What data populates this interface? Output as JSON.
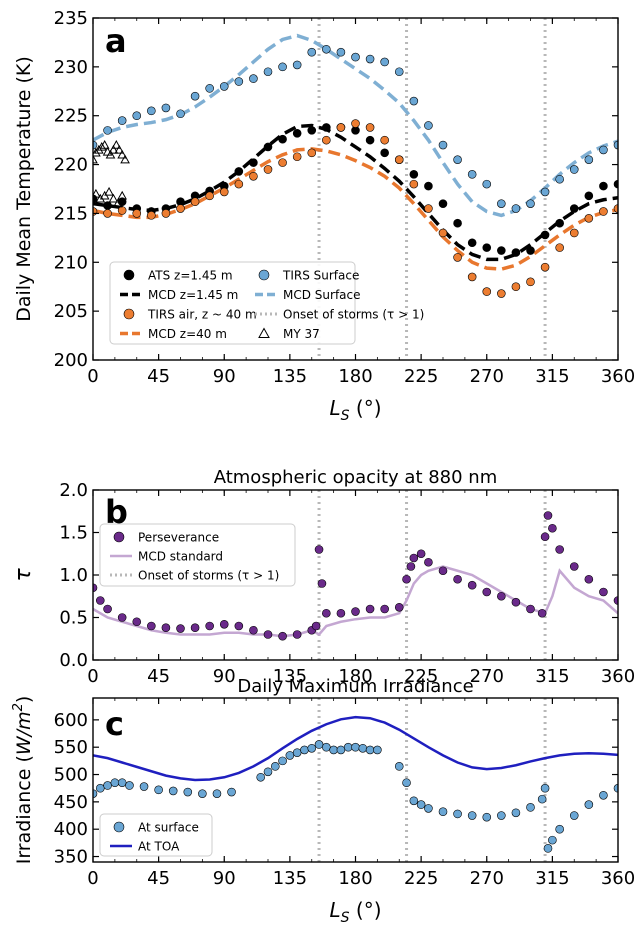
{
  "chart_data": [
    {
      "panel": "a",
      "type": "scatter",
      "title": "",
      "xlabel": "L_S (°)",
      "ylabel": "Daily Mean Temperature (K)",
      "xlim": [
        0,
        360
      ],
      "ylim": [
        200,
        235
      ],
      "xticks": [
        0,
        45,
        90,
        135,
        180,
        225,
        270,
        315,
        360
      ],
      "yticks": [
        200,
        205,
        210,
        215,
        220,
        225,
        230,
        235
      ],
      "storm_onsets": [
        155,
        215,
        310
      ],
      "legend_position": "lower-left",
      "series": [
        {
          "name": "ATS z=1.45 m",
          "kind": "scatter",
          "marker": "circle",
          "color": "#000000",
          "x": [
            0,
            10,
            20,
            30,
            40,
            50,
            60,
            70,
            80,
            90,
            100,
            110,
            120,
            130,
            140,
            150,
            160,
            170,
            180,
            190,
            200,
            210,
            220,
            230,
            240,
            250,
            260,
            270,
            280,
            290,
            300,
            310,
            320,
            330,
            340,
            350,
            360
          ],
          "y": [
            216.5,
            215.8,
            216.2,
            215.5,
            215.2,
            215.5,
            216.2,
            216.8,
            217.3,
            217.8,
            219.3,
            220.2,
            221.8,
            222.6,
            223.2,
            223.5,
            223.8,
            223.8,
            223.5,
            222.5,
            221.2,
            220.5,
            219.0,
            217.8,
            216.0,
            214.0,
            212.0,
            211.5,
            211.2,
            211.0,
            211.2,
            212.8,
            214.0,
            215.5,
            216.8,
            217.8,
            218.0
          ]
        },
        {
          "name": "MCD z=1.45 m",
          "kind": "line",
          "dash": "dashed",
          "color": "#000000",
          "x": [
            0,
            10,
            20,
            30,
            40,
            50,
            60,
            70,
            80,
            90,
            100,
            110,
            120,
            130,
            140,
            150,
            160,
            170,
            180,
            190,
            200,
            210,
            220,
            230,
            240,
            250,
            260,
            270,
            280,
            290,
            300,
            310,
            320,
            330,
            340,
            350,
            360
          ],
          "y": [
            216.0,
            215.8,
            215.6,
            215.4,
            215.3,
            215.5,
            215.9,
            216.5,
            217.3,
            218.2,
            219.3,
            220.6,
            221.9,
            223.1,
            223.9,
            224.0,
            223.6,
            222.8,
            221.8,
            220.8,
            219.6,
            218.3,
            216.7,
            215.0,
            213.3,
            211.8,
            210.8,
            210.3,
            210.3,
            210.8,
            211.8,
            213.0,
            214.2,
            215.2,
            216.0,
            216.4,
            216.6
          ]
        },
        {
          "name": "TIRS air, z ~ 40 m",
          "kind": "scatter",
          "marker": "circle",
          "color": "#ec7d31",
          "x": [
            0,
            10,
            20,
            30,
            40,
            50,
            60,
            70,
            80,
            90,
            100,
            110,
            120,
            130,
            140,
            150,
            160,
            170,
            180,
            190,
            200,
            210,
            220,
            230,
            240,
            250,
            260,
            270,
            280,
            290,
            300,
            310,
            320,
            330,
            340,
            350,
            360
          ],
          "y": [
            215.2,
            215.0,
            215.3,
            215.0,
            214.8,
            215.0,
            215.5,
            216.2,
            216.8,
            217.2,
            218.0,
            218.8,
            219.5,
            220.2,
            220.8,
            221.2,
            222.5,
            223.8,
            224.2,
            223.8,
            222.5,
            220.5,
            218.0,
            215.5,
            213.0,
            210.5,
            208.5,
            207.0,
            206.8,
            207.5,
            208.0,
            209.5,
            211.5,
            213.0,
            214.5,
            215.2,
            215.5
          ]
        },
        {
          "name": "MCD z=40 m",
          "kind": "line",
          "dash": "dashed",
          "color": "#e8772e",
          "x": [
            0,
            10,
            20,
            30,
            40,
            50,
            60,
            70,
            80,
            90,
            100,
            110,
            120,
            130,
            140,
            150,
            160,
            170,
            180,
            190,
            200,
            210,
            220,
            230,
            240,
            250,
            260,
            270,
            280,
            290,
            300,
            310,
            320,
            330,
            340,
            350,
            360
          ],
          "y": [
            215.3,
            215.0,
            214.8,
            214.6,
            214.6,
            214.9,
            215.4,
            216.0,
            216.8,
            217.6,
            218.5,
            219.4,
            220.3,
            221.0,
            221.5,
            221.6,
            221.4,
            221.0,
            220.4,
            219.7,
            218.8,
            217.6,
            216.0,
            214.3,
            212.6,
            211.2,
            210.0,
            209.4,
            209.3,
            209.7,
            210.6,
            211.7,
            212.8,
            213.8,
            214.6,
            215.1,
            215.4
          ]
        },
        {
          "name": "TIRS Surface",
          "kind": "scatter",
          "marker": "circle",
          "color": "#6aa6d4",
          "x": [
            0,
            10,
            20,
            30,
            40,
            50,
            60,
            70,
            80,
            90,
            100,
            110,
            120,
            130,
            140,
            150,
            160,
            170,
            180,
            190,
            200,
            210,
            220,
            230,
            240,
            250,
            260,
            270,
            280,
            290,
            300,
            310,
            320,
            330,
            340,
            350,
            360
          ],
          "y": [
            222.0,
            223.5,
            224.5,
            225.0,
            225.5,
            225.8,
            225.2,
            227.0,
            227.8,
            228.0,
            228.5,
            228.8,
            229.5,
            230.0,
            230.2,
            231.5,
            231.8,
            231.5,
            231.0,
            230.8,
            230.5,
            229.5,
            226.5,
            224.0,
            222.0,
            220.5,
            219.0,
            218.0,
            216.0,
            215.5,
            216.0,
            217.2,
            218.5,
            219.5,
            220.5,
            221.5,
            222.0
          ]
        },
        {
          "name": "MCD Surface",
          "kind": "line",
          "dash": "dashed",
          "color": "#7fafd3",
          "x": [
            0,
            10,
            20,
            30,
            40,
            50,
            60,
            70,
            80,
            90,
            100,
            110,
            120,
            130,
            140,
            150,
            160,
            170,
            180,
            190,
            200,
            210,
            220,
            230,
            240,
            250,
            260,
            270,
            280,
            290,
            300,
            310,
            320,
            330,
            340,
            350,
            360
          ],
          "y": [
            222.5,
            223.3,
            223.8,
            224.1,
            224.3,
            224.6,
            225.1,
            225.9,
            226.9,
            228.0,
            229.2,
            230.5,
            231.8,
            232.8,
            233.2,
            232.7,
            231.8,
            230.8,
            229.8,
            228.8,
            227.6,
            226.3,
            224.5,
            222.5,
            220.2,
            218.0,
            216.2,
            215.2,
            214.8,
            215.3,
            216.3,
            217.6,
            219.0,
            220.2,
            221.2,
            221.9,
            222.4
          ]
        },
        {
          "name": "Onset of storms (τ > 1)",
          "kind": "legend-only",
          "color": "#b8b8b8"
        },
        {
          "name": "MY 37",
          "kind": "scatter",
          "marker": "triangle",
          "color": "#000000",
          "x": [
            0,
            2,
            4,
            6,
            8,
            10,
            12,
            14,
            16,
            18,
            20,
            22,
            2,
            5,
            8,
            11,
            14,
            17,
            20
          ],
          "y": [
            220.5,
            221.2,
            221.5,
            221.8,
            222.0,
            221.3,
            221.0,
            221.5,
            222.0,
            221.5,
            221.0,
            220.5,
            217.0,
            216.5,
            216.8,
            217.2,
            216.5,
            216.0,
            216.8
          ]
        }
      ]
    },
    {
      "panel": "b",
      "type": "scatter",
      "title": "Atmospheric opacity at 880 nm",
      "xlabel": "",
      "ylabel": "τ",
      "xlim": [
        0,
        360
      ],
      "ylim": [
        0.0,
        2.0
      ],
      "xticks": [
        0,
        45,
        90,
        135,
        180,
        225,
        270,
        315,
        360
      ],
      "yticks": [
        0.0,
        0.5,
        1.0,
        1.5,
        2.0
      ],
      "storm_onsets": [
        155,
        215,
        310
      ],
      "legend_position": "upper-left",
      "series": [
        {
          "name": "Perseverance",
          "kind": "scatter",
          "marker": "circle",
          "color": "#6a2a8a",
          "x": [
            0,
            5,
            10,
            20,
            30,
            40,
            50,
            60,
            70,
            80,
            90,
            100,
            110,
            120,
            130,
            140,
            150,
            153,
            155,
            157,
            160,
            170,
            180,
            190,
            200,
            210,
            215,
            218,
            220,
            225,
            230,
            240,
            250,
            260,
            270,
            280,
            290,
            300,
            308,
            310,
            312,
            315,
            320,
            330,
            340,
            350,
            360
          ],
          "y": [
            0.85,
            0.7,
            0.6,
            0.5,
            0.45,
            0.4,
            0.38,
            0.37,
            0.38,
            0.4,
            0.42,
            0.4,
            0.35,
            0.3,
            0.28,
            0.3,
            0.35,
            0.4,
            1.3,
            0.9,
            0.55,
            0.55,
            0.57,
            0.6,
            0.6,
            0.62,
            0.95,
            1.1,
            1.2,
            1.25,
            1.15,
            1.05,
            0.95,
            0.88,
            0.8,
            0.75,
            0.68,
            0.6,
            0.55,
            1.45,
            1.7,
            1.55,
            1.3,
            1.1,
            0.95,
            0.8,
            0.7
          ]
        },
        {
          "name": "MCD standard",
          "kind": "line",
          "color": "#c4a7d2",
          "x": [
            0,
            10,
            20,
            30,
            40,
            50,
            60,
            70,
            80,
            90,
            100,
            110,
            120,
            130,
            140,
            150,
            155,
            160,
            170,
            180,
            190,
            200,
            210,
            215,
            220,
            225,
            230,
            240,
            250,
            260,
            270,
            280,
            290,
            300,
            310,
            315,
            320,
            330,
            340,
            350,
            360
          ],
          "y": [
            0.6,
            0.5,
            0.45,
            0.4,
            0.35,
            0.32,
            0.3,
            0.3,
            0.3,
            0.32,
            0.32,
            0.3,
            0.3,
            0.28,
            0.3,
            0.35,
            0.3,
            0.4,
            0.45,
            0.48,
            0.5,
            0.5,
            0.55,
            0.7,
            0.9,
            1.0,
            1.05,
            1.1,
            1.05,
            1.0,
            0.9,
            0.8,
            0.7,
            0.6,
            0.55,
            0.75,
            1.05,
            0.85,
            0.75,
            0.7,
            0.55
          ]
        },
        {
          "name": "Onset of storms (τ > 1)",
          "kind": "legend-only",
          "color": "#b8b8b8"
        }
      ]
    },
    {
      "panel": "c",
      "type": "scatter",
      "title": "Daily Maximum Irradiance",
      "xlabel": "L_S (°)",
      "ylabel": "Irradiance (W/m²)",
      "xlim": [
        0,
        360
      ],
      "ylim": [
        340,
        640
      ],
      "xticks": [
        0,
        45,
        90,
        135,
        180,
        225,
        270,
        315,
        360
      ],
      "yticks": [
        350,
        400,
        450,
        500,
        550,
        600
      ],
      "storm_onsets": [
        155,
        215,
        310
      ],
      "legend_position": "lower-left",
      "series": [
        {
          "name": "At surface",
          "kind": "scatter",
          "marker": "circle",
          "color": "#6aa6d4",
          "x": [
            0,
            5,
            10,
            15,
            20,
            25,
            35,
            45,
            55,
            65,
            75,
            85,
            95,
            115,
            120,
            125,
            130,
            135,
            140,
            145,
            150,
            155,
            160,
            165,
            170,
            175,
            180,
            185,
            190,
            195,
            210,
            215,
            220,
            225,
            230,
            240,
            250,
            260,
            270,
            280,
            290,
            300,
            308,
            310,
            312,
            315,
            320,
            330,
            340,
            350,
            360
          ],
          "y": [
            465,
            475,
            480,
            485,
            485,
            480,
            478,
            472,
            470,
            468,
            465,
            465,
            468,
            495,
            505,
            515,
            525,
            535,
            540,
            545,
            548,
            555,
            550,
            545,
            545,
            550,
            550,
            548,
            545,
            545,
            515,
            485,
            452,
            445,
            438,
            432,
            428,
            425,
            422,
            425,
            430,
            440,
            455,
            475,
            365,
            380,
            400,
            425,
            445,
            462,
            475
          ]
        },
        {
          "name": "At TOA",
          "kind": "line",
          "color": "#1f1fbf",
          "x": [
            0,
            10,
            20,
            30,
            40,
            50,
            60,
            70,
            80,
            90,
            100,
            110,
            120,
            130,
            140,
            150,
            160,
            170,
            180,
            190,
            200,
            210,
            220,
            230,
            240,
            250,
            260,
            270,
            280,
            290,
            300,
            310,
            320,
            330,
            340,
            350,
            360
          ],
          "y": [
            535,
            530,
            522,
            514,
            506,
            498,
            493,
            490,
            491,
            495,
            503,
            515,
            530,
            548,
            565,
            580,
            592,
            601,
            605,
            603,
            595,
            582,
            566,
            550,
            535,
            522,
            513,
            510,
            512,
            517,
            524,
            530,
            535,
            538,
            539,
            538,
            536
          ]
        }
      ]
    }
  ],
  "panel_labels": {
    "a": "a",
    "b": "b",
    "c": "c"
  }
}
